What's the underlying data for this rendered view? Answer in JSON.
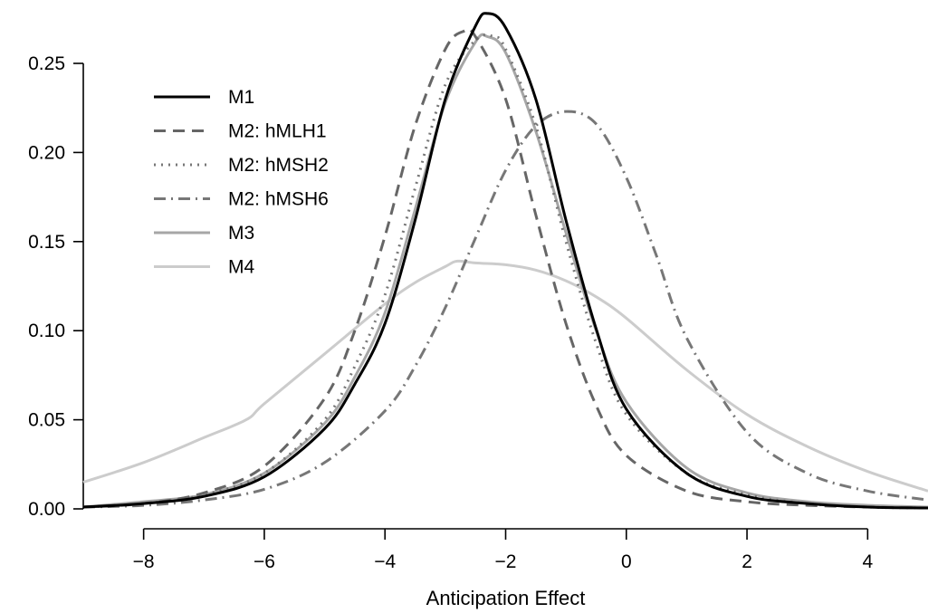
{
  "chart_data": {
    "type": "line",
    "title": "",
    "xlabel": "Anticipation Effect",
    "ylabel": "",
    "xlim": [
      -9,
      5
    ],
    "ylim": [
      0,
      0.25
    ],
    "x_ticks": [
      -8,
      -6,
      -4,
      -2,
      0,
      2,
      4
    ],
    "x_tick_labels": [
      "−8",
      "−6",
      "−4",
      "−2",
      "0",
      "2",
      "4"
    ],
    "y_ticks": [
      0.0,
      0.05,
      0.1,
      0.15,
      0.2,
      0.25
    ],
    "y_tick_labels": [
      "0.00",
      "0.05",
      "0.10",
      "0.15",
      "0.20",
      "0.25"
    ],
    "grid": false,
    "legend_position": "top-left",
    "series": [
      {
        "name": "M1",
        "color": "#000000",
        "dash": "solid",
        "x": [
          -9,
          -8,
          -7,
          -6,
          -5,
          -4.5,
          -4,
          -3.5,
          -3,
          -2.5,
          -2.3,
          -2,
          -1.5,
          -1,
          -0.5,
          0,
          1,
          2,
          3,
          4,
          5
        ],
        "y": [
          0.001,
          0.003,
          0.007,
          0.018,
          0.045,
          0.07,
          0.104,
          0.162,
          0.23,
          0.271,
          0.278,
          0.27,
          0.23,
          0.162,
          0.101,
          0.056,
          0.02,
          0.007,
          0.003,
          0.001,
          0.0005
        ]
      },
      {
        "name": "M2: hMLH1",
        "color": "#666666",
        "dash": "dashed",
        "x": [
          -9,
          -8,
          -7,
          -6,
          -5,
          -4.5,
          -4,
          -3.5,
          -3,
          -2.7,
          -2.5,
          -2,
          -1.5,
          -1,
          -0.5,
          0,
          1,
          2,
          3,
          4,
          5
        ],
        "y": [
          0.001,
          0.003,
          0.009,
          0.024,
          0.062,
          0.1,
          0.153,
          0.215,
          0.258,
          0.268,
          0.265,
          0.23,
          0.165,
          0.104,
          0.058,
          0.03,
          0.01,
          0.004,
          0.002,
          0.001,
          0.0005
        ]
      },
      {
        "name": "M2: hMSH2",
        "color": "#777777",
        "dash": "dotted",
        "x": [
          -9,
          -8,
          -7,
          -6,
          -5,
          -4.5,
          -4,
          -3.5,
          -3,
          -2.5,
          -2.2,
          -2,
          -1.5,
          -1,
          -0.5,
          0,
          1,
          2,
          3,
          4,
          5
        ],
        "y": [
          0.001,
          0.003,
          0.008,
          0.02,
          0.05,
          0.08,
          0.12,
          0.18,
          0.238,
          0.263,
          0.265,
          0.258,
          0.215,
          0.15,
          0.093,
          0.053,
          0.02,
          0.008,
          0.003,
          0.001,
          0.0005
        ]
      },
      {
        "name": "M2: hMSH6",
        "color": "#777777",
        "dash": "dashdot",
        "x": [
          -9,
          -8,
          -7,
          -6,
          -5,
          -4,
          -3.5,
          -3,
          -2.5,
          -2,
          -1.5,
          -1,
          -0.5,
          0,
          0.5,
          1,
          2,
          3,
          4,
          5
        ],
        "y": [
          0.001,
          0.002,
          0.005,
          0.011,
          0.026,
          0.055,
          0.08,
          0.113,
          0.152,
          0.19,
          0.215,
          0.223,
          0.216,
          0.186,
          0.142,
          0.096,
          0.043,
          0.02,
          0.01,
          0.005
        ]
      },
      {
        "name": "M3",
        "color": "#a6a6a6",
        "dash": "solid",
        "x": [
          -9,
          -8,
          -7,
          -6,
          -5,
          -4.5,
          -4,
          -3.5,
          -3,
          -2.5,
          -2.3,
          -2,
          -1.5,
          -1,
          -0.5,
          0,
          1,
          2,
          3,
          4,
          5
        ],
        "y": [
          0.001,
          0.004,
          0.008,
          0.02,
          0.048,
          0.074,
          0.11,
          0.168,
          0.228,
          0.262,
          0.265,
          0.256,
          0.212,
          0.155,
          0.1,
          0.06,
          0.023,
          0.009,
          0.004,
          0.002,
          0.001
        ]
      },
      {
        "name": "M4",
        "color": "#cccccc",
        "dash": "solid",
        "x": [
          -9,
          -8,
          -7,
          -6.3,
          -6,
          -5,
          -4,
          -3.5,
          -3,
          -2.8,
          -2.5,
          -2,
          -1.5,
          -1,
          -0.5,
          0,
          1,
          2,
          3,
          4,
          5
        ],
        "y": [
          0.015,
          0.026,
          0.04,
          0.05,
          0.059,
          0.087,
          0.115,
          0.127,
          0.136,
          0.139,
          0.138,
          0.137,
          0.134,
          0.128,
          0.119,
          0.107,
          0.078,
          0.053,
          0.035,
          0.021,
          0.01
        ]
      }
    ]
  }
}
